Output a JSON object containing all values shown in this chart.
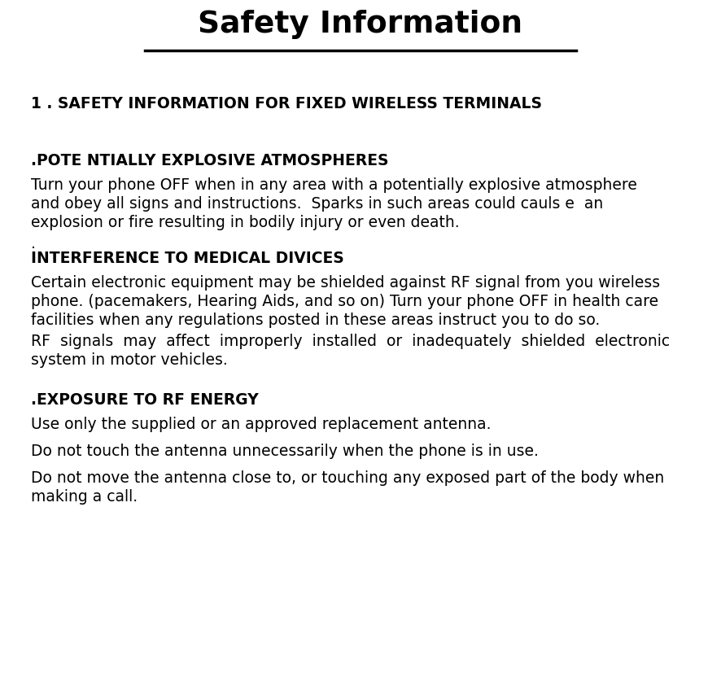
{
  "title": "Safety Information",
  "background_color": "#ffffff",
  "text_color": "#000000",
  "fig_width": 8.86,
  "fig_height": 8.38,
  "section1_heading": "1 . SAFETY INFORMATION FOR FIXED WIRELESS TERMINALS",
  "section2_heading": ".POTE NTIALLY EXPLOSIVE ATMOSPHERES",
  "section3_heading": "INTERFERENCE TO MEDICAL DIVICES",
  "section4_heading": ".EXPOSURE TO RF ENERGY",
  "body2_line1": "Turn your phone OFF when in any area with a potentially explosive atmosphere",
  "body2_line2": "and obey all signs and instructions.  Sparks in such areas could cauls e  an",
  "body2_line3": "explosion or fire resulting in bodily injury or even death.",
  "body3_line1": "Certain electronic equipment may be shielded against RF signal from you wireless",
  "body3_line2": "phone. (pacemakers, Hearing Aids, and so on) Turn your phone OFF in health care",
  "body3_line3": "facilities when any regulations posted in these areas instruct you to do so.",
  "body3_line4": "RF  signals  may  affect  improperly  installed  or  inadequately  shielded  electronic",
  "body3_line5": "system in motor vehicles.",
  "body4_line1": "Use only the supplied or an approved replacement antenna.",
  "body4_line2": "Do not touch the antenna unnecessarily when the phone is in use.",
  "body4_line3": "Do not move the antenna close to, or touching any exposed part of the body when",
  "body4_line4": "making a call.",
  "dot": "."
}
